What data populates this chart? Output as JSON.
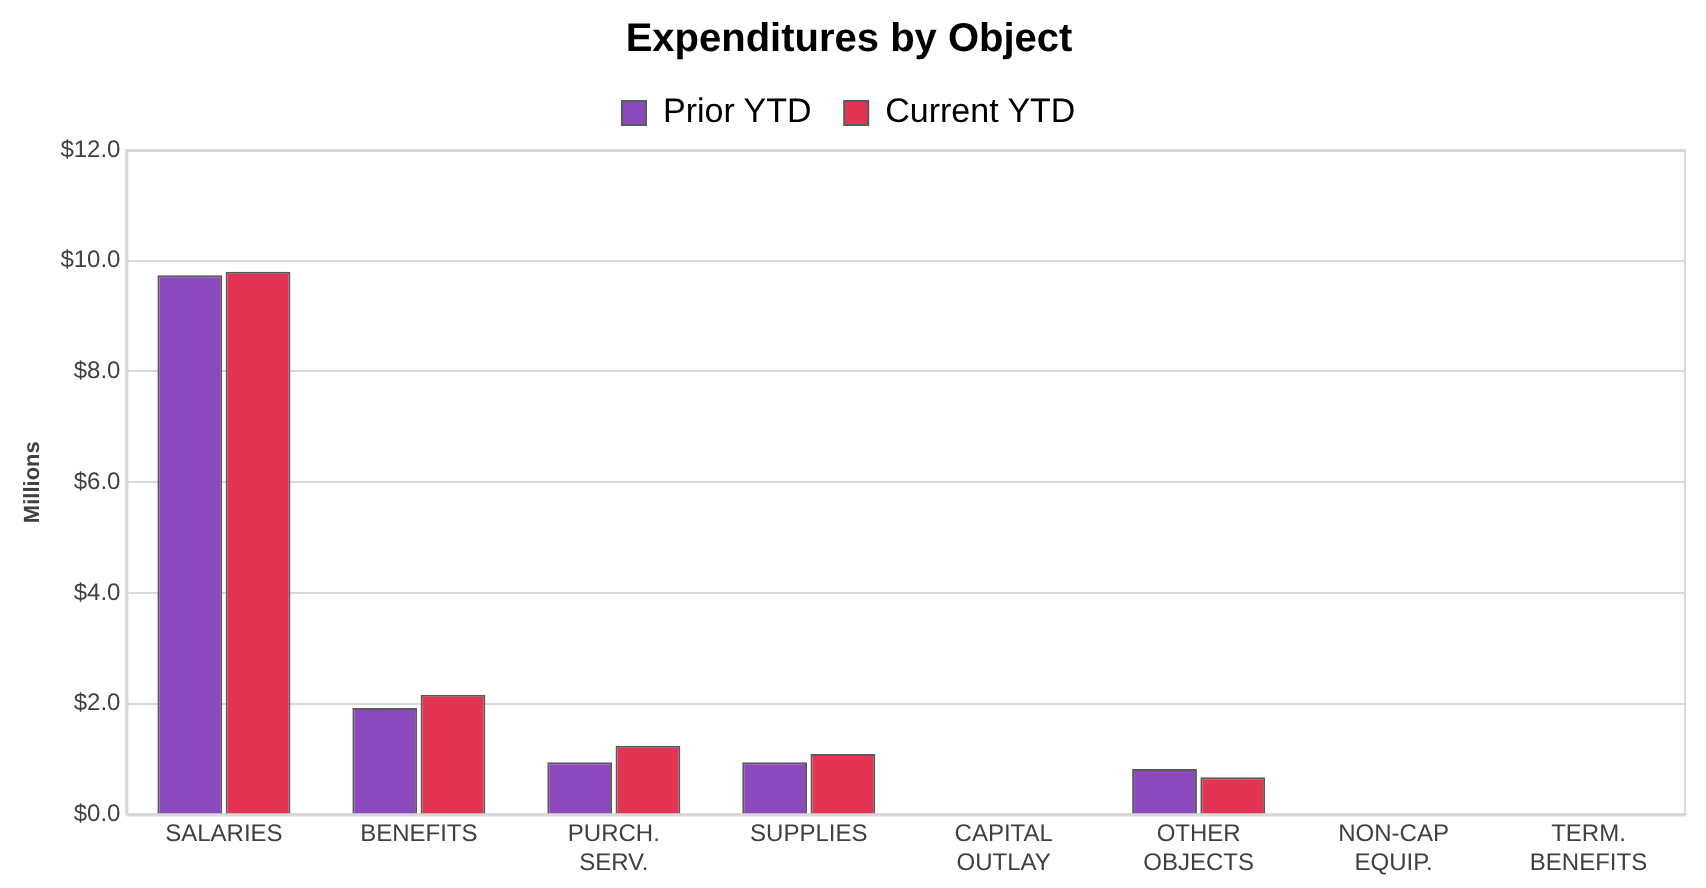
{
  "chart_data": {
    "type": "bar",
    "title": "Expenditures by Object",
    "ylabel": "Millions",
    "categories": [
      "SALARIES",
      "BENEFITS",
      "PURCH. SERV.",
      "SUPPLIES",
      "CAPITAL OUTLAY",
      "OTHER OBJECTS",
      "NON-CAP EQUIP.",
      "TERM. BENEFITS"
    ],
    "series": [
      {
        "name": "Prior YTD",
        "color": "#8b49bd",
        "values": [
          9.74,
          1.92,
          0.94,
          0.94,
          null,
          0.82,
          null,
          0
        ]
      },
      {
        "name": "Current YTD",
        "color": "#e33553",
        "values": [
          9.8,
          2.16,
          1.24,
          1.09,
          null,
          0.67,
          null,
          0
        ]
      }
    ],
    "ylim": [
      0,
      12
    ],
    "yticks": [
      {
        "value": 0,
        "label": "$0.0"
      },
      {
        "value": 2,
        "label": "$2.0"
      },
      {
        "value": 4,
        "label": "$4.0"
      },
      {
        "value": 6,
        "label": "$6.0"
      },
      {
        "value": 8,
        "label": "$8.0"
      },
      {
        "value": 10,
        "label": "$10.0"
      },
      {
        "value": 12,
        "label": "$12.0"
      }
    ],
    "grid": "y",
    "legend": "top"
  }
}
